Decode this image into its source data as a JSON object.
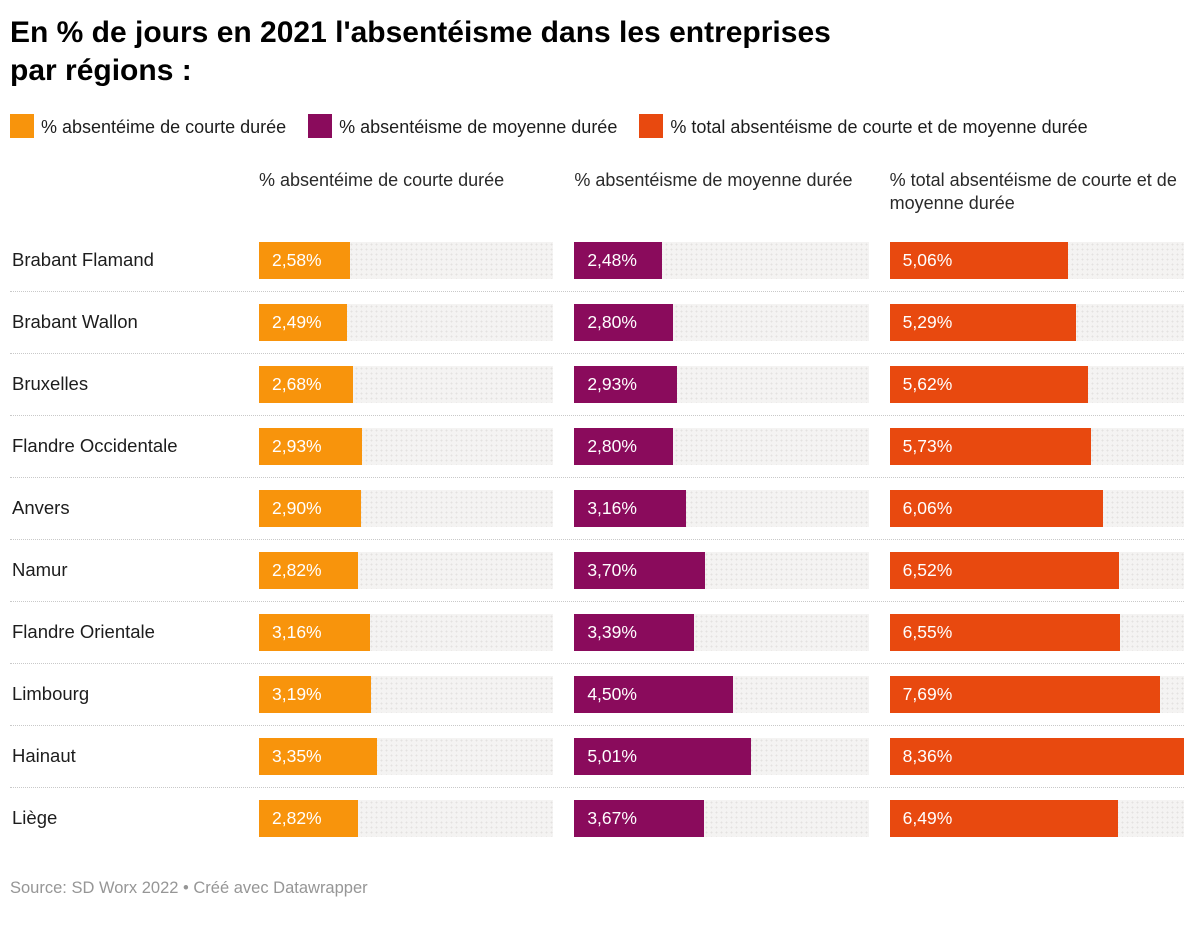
{
  "title": {
    "line1": "En % de jours en 2021 l'absentéisme dans les entreprises",
    "line2": "par régions :"
  },
  "legend": [
    {
      "label": "% absentéime de courte durée",
      "color": "#f8940c"
    },
    {
      "label": "% absentéisme de moyenne durée",
      "color": "#8a0b5c"
    },
    {
      "label": "% total absentéisme de courte et de moyenne durée",
      "color": "#e8490f"
    }
  ],
  "columns": [
    "% absentéime de courte durée",
    "% absentéisme de moyenne durée",
    "% total absentéisme de courte et de moyenne durée"
  ],
  "footer": "Source: SD Worx 2022 • Créé avec Datawrapper",
  "colors": {
    "short_duration": "#f8940c",
    "medium_duration": "#8a0b5c",
    "total": "#e8490f",
    "track": "#f4f3f2"
  },
  "chart_data": {
    "type": "bar",
    "title": "En % de jours en 2021 l'absentéisme dans les entreprises par régions :",
    "categories": [
      "Brabant Flamand",
      "Brabant Wallon",
      "Bruxelles",
      "Flandre Occidentale",
      "Anvers",
      "Namur",
      "Flandre Orientale",
      "Limbourg",
      "Hainaut",
      "Liège"
    ],
    "series": [
      {
        "name": "% absentéime de courte durée",
        "color": "#f8940c",
        "values": [
          2.58,
          2.49,
          2.68,
          2.93,
          2.9,
          2.82,
          3.16,
          3.19,
          3.35,
          2.82
        ],
        "labels": [
          "2,58%",
          "2,49%",
          "2,68%",
          "2,93%",
          "2,90%",
          "2,82%",
          "3,16%",
          "3,19%",
          "3,35%",
          "2,82%"
        ]
      },
      {
        "name": "% absentéisme de moyenne durée",
        "color": "#8a0b5c",
        "values": [
          2.48,
          2.8,
          2.93,
          2.8,
          3.16,
          3.7,
          3.39,
          4.5,
          5.01,
          3.67
        ],
        "labels": [
          "2,48%",
          "2,80%",
          "2,93%",
          "2,80%",
          "3,16%",
          "3,70%",
          "3,39%",
          "4,50%",
          "5,01%",
          "3,67%"
        ]
      },
      {
        "name": "% total absentéisme de courte et de moyenne durée",
        "color": "#e8490f",
        "values": [
          5.06,
          5.29,
          5.62,
          5.73,
          6.06,
          6.52,
          6.55,
          7.69,
          8.36,
          6.49
        ],
        "labels": [
          "5,06%",
          "5,29%",
          "5,62%",
          "5,73%",
          "6,06%",
          "6,52%",
          "6,55%",
          "7,69%",
          "8,36%",
          "6,49%"
        ]
      }
    ],
    "xlim": [
      0,
      8.36
    ],
    "grid": false,
    "legend_position": "top",
    "source": "Source: SD Worx 2022 • Créé avec Datawrapper"
  }
}
